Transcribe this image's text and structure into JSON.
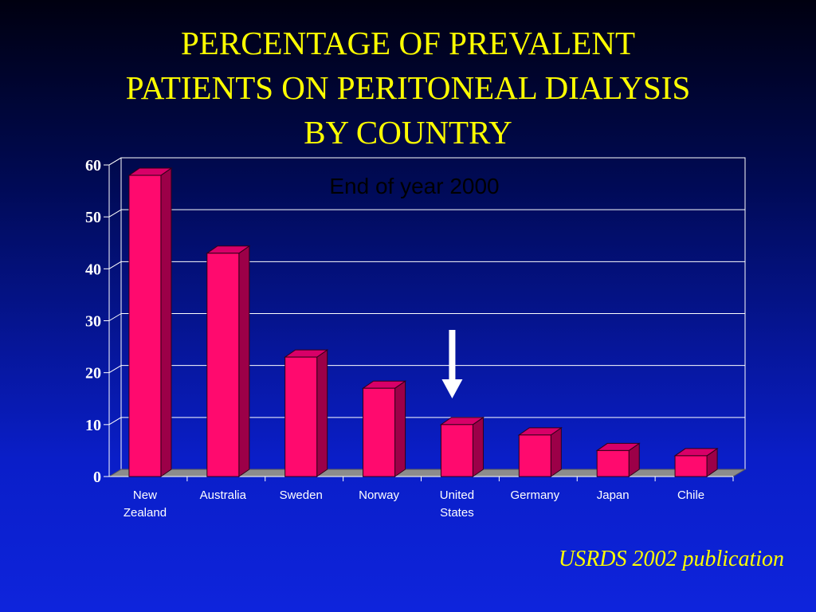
{
  "slide": {
    "title_lines": [
      "PERCENTAGE OF PREVALENT",
      "PATIENTS ON PERITONEAL DIALYSIS",
      "BY COUNTRY"
    ],
    "source": "USRDS 2002 publication"
  },
  "chart_data": {
    "type": "bar",
    "title": "",
    "subtitle": "End of year 2000",
    "xlabel": "",
    "ylabel": "",
    "categories": [
      [
        "New",
        "Zealand"
      ],
      [
        "Australia"
      ],
      [
        "Sweden"
      ],
      [
        "Norway"
      ],
      [
        "United",
        "States"
      ],
      [
        "Germany"
      ],
      [
        "Japan"
      ],
      [
        "Chile"
      ]
    ],
    "values": [
      58,
      43,
      23,
      17,
      10,
      8,
      5,
      4
    ],
    "ylim": [
      0,
      60
    ],
    "yticks": [
      "0",
      "10",
      "20",
      "30",
      "40",
      "50",
      "60"
    ],
    "grid": true,
    "three_d": true,
    "highlight_arrow": "United States",
    "colors": {
      "bar_front": "#ff0a6e",
      "bar_top": "#d80068",
      "bar_side": "#9c0048",
      "floor": "#8c8c8c",
      "gridline": "#ffffff",
      "axis": "#ffffff",
      "text": "#ffffff",
      "arrow": "#ffffff"
    }
  }
}
